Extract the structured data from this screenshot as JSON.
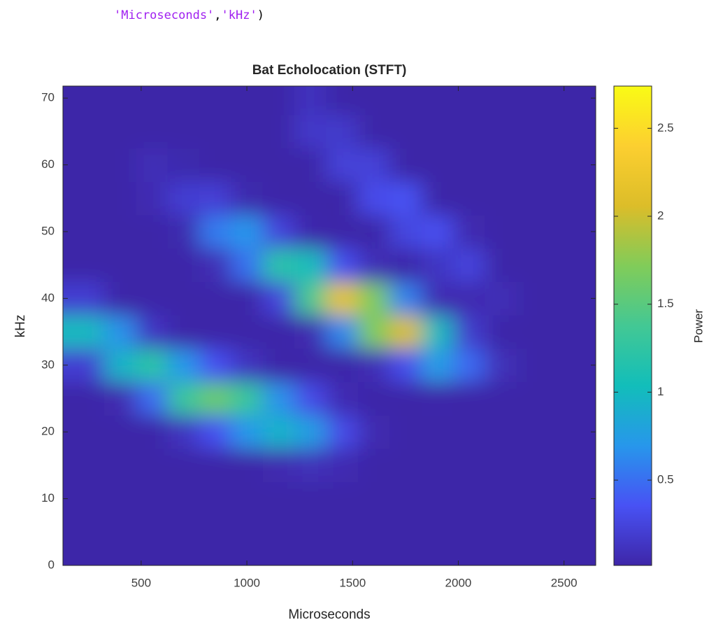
{
  "code": [
    "'Microseconds'",
    ",",
    "'kHz'",
    ")"
  ],
  "chart_data": {
    "type": "heatmap",
    "title": "Bat Echolocation (STFT)",
    "x_label": "Microseconds",
    "y_label": "kHz",
    "colorbar_label": "Power",
    "colormap": "parula",
    "x": [
      250,
      400,
      550,
      700,
      850,
      1000,
      1150,
      1300,
      1450,
      1600,
      1750,
      1900,
      2050,
      2200,
      2350,
      2500
    ],
    "y": [
      0,
      5,
      10,
      15,
      20,
      25,
      30,
      35,
      40,
      45,
      50,
      55,
      60,
      65,
      70
    ],
    "z": [
      [
        0,
        0,
        0,
        0,
        0,
        0,
        0,
        0,
        0,
        0,
        0,
        0,
        0,
        0,
        0,
        0
      ],
      [
        0,
        0,
        0,
        0,
        0,
        0,
        0,
        0,
        0,
        0,
        0,
        0,
        0,
        0,
        0,
        0
      ],
      [
        0,
        0,
        0,
        0,
        0,
        0,
        0,
        0,
        0,
        0,
        0,
        0,
        0,
        0,
        0,
        0
      ],
      [
        0,
        0,
        0,
        0,
        0,
        0,
        0.05,
        0.09,
        0.06,
        0,
        0,
        0,
        0,
        0,
        0,
        0
      ],
      [
        0,
        0,
        0,
        0.12,
        0.34,
        0.7,
        0.94,
        0.75,
        0.3,
        0.05,
        0,
        0,
        0,
        0,
        0,
        0
      ],
      [
        0,
        0.05,
        0.48,
        1.3,
        1.6,
        1.3,
        0.68,
        0.3,
        0.06,
        0,
        0,
        0.02,
        0,
        0,
        0,
        0
      ],
      [
        0.2,
        0.94,
        1.22,
        0.7,
        0.34,
        0.12,
        0,
        0,
        0,
        0.07,
        0.32,
        0.74,
        0.47,
        0.09,
        0,
        0
      ],
      [
        1.0,
        0.68,
        0.14,
        0,
        0,
        0,
        0,
        0.05,
        0.62,
        1.7,
        2.06,
        1.01,
        0.18,
        0,
        0,
        0
      ],
      [
        0.2,
        0,
        0,
        0,
        0,
        0,
        0.25,
        1.4,
        2.16,
        1.7,
        0.6,
        0.06,
        0.05,
        0.08,
        0,
        0
      ],
      [
        0,
        0,
        0,
        0,
        0.07,
        0.51,
        1.2,
        1.03,
        0.33,
        0.07,
        0,
        0.13,
        0.25,
        0,
        0,
        0
      ],
      [
        0,
        0,
        0,
        0.04,
        0.56,
        0.7,
        0.25,
        0.03,
        0,
        0,
        0.26,
        0.33,
        0.05,
        0,
        0,
        0
      ],
      [
        0,
        0,
        0.06,
        0.2,
        0.22,
        0.04,
        0,
        0,
        0,
        0.31,
        0.35,
        0,
        0,
        0,
        0,
        0
      ],
      [
        0,
        0,
        0.08,
        0.04,
        0,
        0,
        0,
        0,
        0.23,
        0.23,
        0,
        0,
        0,
        0,
        0,
        0
      ],
      [
        0,
        0,
        0,
        0,
        0,
        0,
        0,
        0.16,
        0.17,
        0,
        0,
        0,
        0,
        0,
        0,
        0
      ],
      [
        0,
        0,
        0,
        0,
        0,
        0,
        0,
        0.11,
        0,
        0,
        0,
        0,
        0,
        0,
        0,
        0
      ]
    ],
    "xlim": [
      130,
      2650
    ],
    "ylim": [
      0,
      71.8
    ],
    "clim": [
      0.015,
      2.74
    ],
    "xticks": [
      500,
      1000,
      1500,
      2000,
      2500
    ],
    "yticks": [
      0,
      10,
      20,
      30,
      40,
      50,
      60,
      70
    ],
    "cticks": [
      0.5,
      1,
      1.5,
      2,
      2.5
    ]
  }
}
